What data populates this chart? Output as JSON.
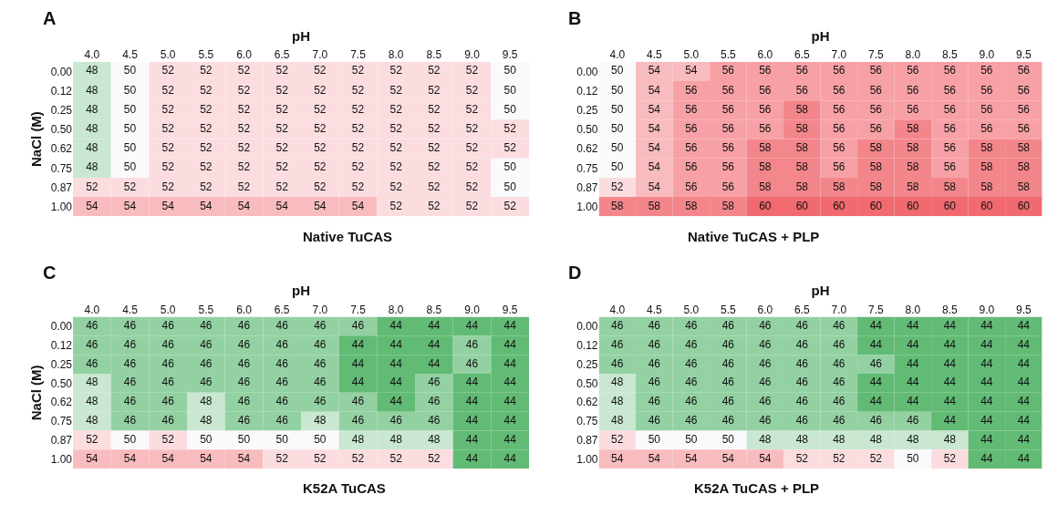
{
  "chart_data": [
    {
      "type": "heatmap",
      "title": "Native TuCAS",
      "annotations": [
        "A"
      ],
      "xlabel": "pH",
      "ylabel": "NaCl (M)",
      "data_labels": true,
      "categories": [
        "4.0",
        "4.5",
        "5.0",
        "5.5",
        "6.0",
        "6.5",
        "7.0",
        "7.5",
        "8.0",
        "8.5",
        "9.0",
        "9.5"
      ],
      "y_categories": [
        "0.00",
        "0.12",
        "0.25",
        "0.50",
        "0.62",
        "0.75",
        "0.87",
        "1.00"
      ],
      "cells": [
        [
          48,
          50,
          52,
          52,
          52,
          52,
          52,
          52,
          52,
          52,
          52,
          50
        ],
        [
          48,
          50,
          52,
          52,
          52,
          52,
          52,
          52,
          52,
          52,
          52,
          50
        ],
        [
          48,
          50,
          52,
          52,
          52,
          52,
          52,
          52,
          52,
          52,
          52,
          50
        ],
        [
          48,
          50,
          52,
          52,
          52,
          52,
          52,
          52,
          52,
          52,
          52,
          52
        ],
        [
          48,
          50,
          52,
          52,
          52,
          52,
          52,
          52,
          52,
          52,
          52,
          52
        ],
        [
          48,
          50,
          52,
          52,
          52,
          52,
          52,
          52,
          52,
          52,
          52,
          50
        ],
        [
          52,
          52,
          52,
          52,
          52,
          52,
          52,
          52,
          52,
          52,
          52,
          50
        ],
        [
          54,
          54,
          54,
          54,
          54,
          54,
          54,
          54,
          52,
          52,
          52,
          52
        ]
      ]
    },
    {
      "type": "heatmap",
      "title": "Native TuCAS + PLP",
      "annotations": [
        "B"
      ],
      "xlabel": "pH",
      "data_labels": true,
      "categories": [
        "4.0",
        "4.5",
        "5.0",
        "5.5",
        "6.0",
        "6.5",
        "7.0",
        "7.5",
        "8.0",
        "8.5",
        "9.0",
        "9.5"
      ],
      "y_categories": [
        "0.00",
        "0.12",
        "0.25",
        "0.50",
        "0.62",
        "0.75",
        "0.87",
        "1.00"
      ],
      "cells": [
        [
          50,
          54,
          54,
          56,
          56,
          56,
          56,
          56,
          56,
          56,
          56,
          56
        ],
        [
          50,
          54,
          56,
          56,
          56,
          56,
          56,
          56,
          56,
          56,
          56,
          56
        ],
        [
          50,
          54,
          56,
          56,
          56,
          58,
          56,
          56,
          56,
          56,
          56,
          56
        ],
        [
          50,
          54,
          56,
          56,
          56,
          58,
          56,
          56,
          58,
          56,
          56,
          56
        ],
        [
          50,
          54,
          56,
          56,
          58,
          58,
          56,
          58,
          58,
          56,
          58,
          58
        ],
        [
          50,
          54,
          56,
          56,
          58,
          58,
          56,
          58,
          58,
          56,
          58,
          58
        ],
        [
          52,
          54,
          56,
          56,
          58,
          58,
          58,
          58,
          58,
          58,
          58,
          58
        ],
        [
          58,
          58,
          58,
          58,
          60,
          60,
          60,
          60,
          60,
          60,
          60,
          60
        ]
      ]
    },
    {
      "type": "heatmap",
      "title": "K52A TuCAS",
      "annotations": [
        "C"
      ],
      "xlabel": "pH",
      "ylabel": "NaCl (M)",
      "data_labels": true,
      "categories": [
        "4.0",
        "4.5",
        "5.0",
        "5.5",
        "6.0",
        "6.5",
        "7.0",
        "7.5",
        "8.0",
        "8.5",
        "9.0",
        "9.5"
      ],
      "y_categories": [
        "0.00",
        "0.12",
        "0.25",
        "0.50",
        "0.62",
        "0.75",
        "0.87",
        "1.00"
      ],
      "cells": [
        [
          46,
          46,
          46,
          46,
          46,
          46,
          46,
          46,
          44,
          44,
          44,
          44
        ],
        [
          46,
          46,
          46,
          46,
          46,
          46,
          46,
          44,
          44,
          44,
          46,
          44
        ],
        [
          46,
          46,
          46,
          46,
          46,
          46,
          46,
          44,
          44,
          44,
          46,
          44
        ],
        [
          48,
          46,
          46,
          46,
          46,
          46,
          46,
          44,
          44,
          46,
          44,
          44
        ],
        [
          48,
          46,
          46,
          48,
          46,
          46,
          46,
          46,
          44,
          46,
          44,
          44
        ],
        [
          48,
          46,
          46,
          48,
          46,
          46,
          48,
          46,
          46,
          46,
          44,
          44
        ],
        [
          52,
          50,
          52,
          50,
          50,
          50,
          50,
          48,
          48,
          48,
          44,
          44
        ],
        [
          54,
          54,
          54,
          54,
          54,
          52,
          52,
          52,
          52,
          52,
          44,
          44
        ]
      ]
    },
    {
      "type": "heatmap",
      "title": "K52A TuCAS + PLP",
      "annotations": [
        "D"
      ],
      "xlabel": "pH",
      "data_labels": true,
      "categories": [
        "4.0",
        "4.5",
        "5.0",
        "5.5",
        "6.0",
        "6.5",
        "7.0",
        "7.5",
        "8.0",
        "8.5",
        "9.0",
        "9.5"
      ],
      "y_categories": [
        "0.00",
        "0.12",
        "0.25",
        "0.50",
        "0.62",
        "0.75",
        "0.87",
        "1.00"
      ],
      "cells": [
        [
          46,
          46,
          46,
          46,
          46,
          46,
          46,
          44,
          44,
          44,
          44,
          44
        ],
        [
          46,
          46,
          46,
          46,
          46,
          46,
          46,
          44,
          44,
          44,
          44,
          44
        ],
        [
          46,
          46,
          46,
          46,
          46,
          46,
          46,
          46,
          44,
          44,
          44,
          44
        ],
        [
          48,
          46,
          46,
          46,
          46,
          46,
          46,
          44,
          44,
          44,
          44,
          44
        ],
        [
          48,
          46,
          46,
          46,
          46,
          46,
          46,
          44,
          44,
          44,
          44,
          44
        ],
        [
          48,
          46,
          46,
          46,
          46,
          46,
          46,
          46,
          46,
          44,
          44,
          44
        ],
        [
          52,
          50,
          50,
          50,
          48,
          48,
          48,
          48,
          48,
          48,
          44,
          44
        ],
        [
          54,
          54,
          54,
          54,
          54,
          52,
          52,
          52,
          50,
          52,
          44,
          44
        ]
      ]
    }
  ]
}
